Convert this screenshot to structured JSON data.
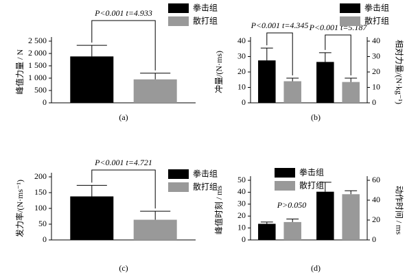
{
  "chart_data": [
    {
      "type": "bar",
      "label": "(a)",
      "ylabel": "峰值力量 / N",
      "ylim": [
        0,
        2500
      ],
      "yticks": [
        0,
        500,
        {
          "value": 1000,
          "label": "1 000"
        },
        {
          "value": 1500,
          "label": "1 500"
        },
        {
          "value": 2000,
          "label": "2 000"
        },
        {
          "value": 2500,
          "label": "2 500"
        }
      ],
      "series": [
        {
          "name": "拳击组",
          "color": "#000000",
          "values": [
            1880
          ],
          "errors": [
            450
          ]
        },
        {
          "name": "散打组",
          "color": "#999999",
          "values": [
            950
          ],
          "errors": [
            250
          ]
        }
      ],
      "annotations": [
        "P<0.001 t=4.933"
      ],
      "brackets": true,
      "legend": "upper right"
    },
    {
      "type": "bar",
      "label": "(b)",
      "ylabel": "冲量/(N·ms)",
      "y2label": "相对力量/(N·kg⁻¹)",
      "ylim": [
        0,
        40
      ],
      "yticks": [
        0,
        10,
        20,
        30,
        40
      ],
      "y2lim": [
        0,
        40
      ],
      "y2ticks": [
        0,
        10,
        20,
        30,
        40
      ],
      "group_axes": [
        "y",
        "y2"
      ],
      "series": [
        {
          "name": "拳击组",
          "color": "#000000",
          "values": [
            27.5,
            26.5
          ],
          "errors": [
            8,
            6
          ]
        },
        {
          "name": "散打组",
          "color": "#999999",
          "values": [
            14,
            13.5
          ],
          "errors": [
            2,
            2.5
          ]
        }
      ],
      "annotations": [
        "P<0.001 t=4.345",
        "P<0.001 t=5.187"
      ],
      "brackets": true,
      "legend": "upper right"
    },
    {
      "type": "bar",
      "label": "(c)",
      "ylabel": "发力率/(N·ms⁻¹)",
      "ylim": [
        0,
        200
      ],
      "yticks": [
        0,
        50,
        100,
        150,
        200
      ],
      "series": [
        {
          "name": "拳击组",
          "color": "#000000",
          "values": [
            138
          ],
          "errors": [
            35
          ]
        },
        {
          "name": "散打组",
          "color": "#999999",
          "values": [
            64
          ],
          "errors": [
            27
          ]
        }
      ],
      "annotations": [
        "P<0.001 t=4.721"
      ],
      "brackets": true,
      "legend": "upper right"
    },
    {
      "type": "bar",
      "label": "(d)",
      "ylabel": "峰值时刻 / ms",
      "y2label": "动作时间 / ms",
      "ylim": [
        0,
        50
      ],
      "yticks": [
        0,
        10,
        20,
        30,
        40,
        50
      ],
      "y2lim": [
        0,
        60
      ],
      "y2ticks": [
        0,
        20,
        40,
        60
      ],
      "group_axes": [
        "y",
        "y2"
      ],
      "series": [
        {
          "name": "拳击组",
          "color": "#000000",
          "values": [
            13.5,
            48.5
          ],
          "errors": [
            1.5,
            9.5
          ]
        },
        {
          "name": "散打组",
          "color": "#999999",
          "values": [
            15,
            46
          ],
          "errors": [
            2.5,
            3.5
          ]
        }
      ],
      "annotations": [
        "P>0.050"
      ],
      "brackets": false,
      "legend": "upper left"
    }
  ]
}
